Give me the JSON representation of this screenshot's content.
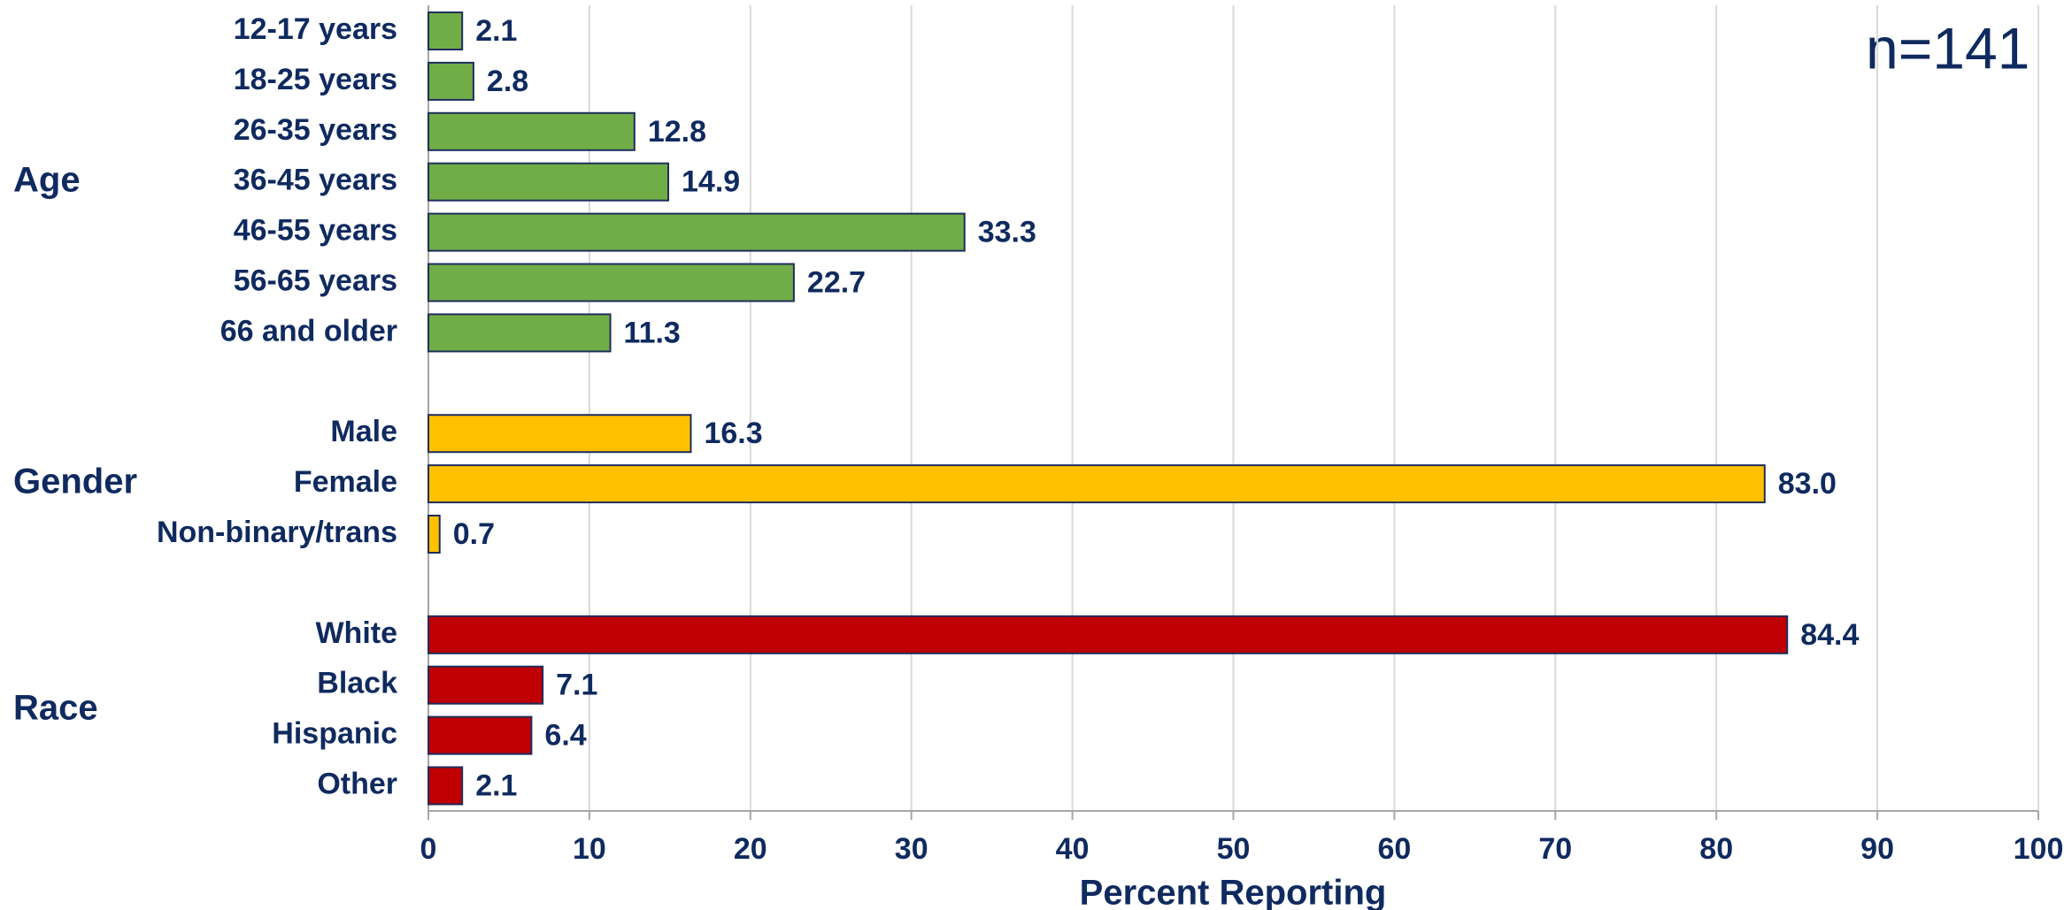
{
  "chart_data": {
    "type": "bar",
    "orientation": "horizontal",
    "annotation": "n=141",
    "xlabel": "Percent Reporting",
    "xlim": [
      0,
      100
    ],
    "xticks": [
      0,
      10,
      20,
      30,
      40,
      50,
      60,
      70,
      80,
      90,
      100
    ],
    "grid": true,
    "series": [
      {
        "name": "Age",
        "color": "#70ad47",
        "categories": [
          "12-17 years",
          "18-25 years",
          "26-35 years",
          "36-45 years",
          "46-55 years",
          "56-65 years",
          "66 and older"
        ],
        "values": [
          2.1,
          2.8,
          12.8,
          14.9,
          33.3,
          22.7,
          11.3
        ]
      },
      {
        "name": "Gender",
        "color": "#ffc000",
        "categories": [
          "Male",
          "Female",
          "Non-binary/trans"
        ],
        "values": [
          16.3,
          83.0,
          0.7
        ],
        "value_labels": [
          "16.3",
          "83.0",
          "0.7"
        ]
      },
      {
        "name": "Race",
        "color": "#c00000",
        "categories": [
          "White",
          "Black",
          "Hispanic",
          "Other"
        ],
        "values": [
          84.4,
          7.1,
          6.4,
          2.1
        ]
      }
    ]
  }
}
